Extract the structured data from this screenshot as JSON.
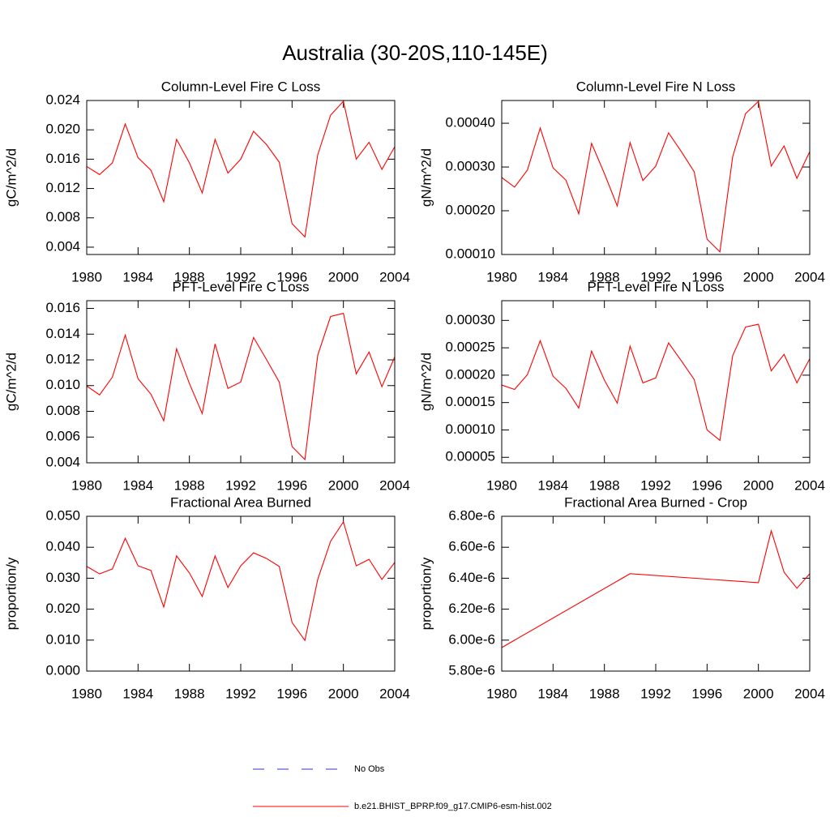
{
  "title": "Australia (30-20S,110-145E)",
  "legend": [
    {
      "name": "No Obs",
      "color": "#3333cc",
      "dash": true
    },
    {
      "name": "b.e21.BHIST_BPRP.f09_g17.CMIP6-esm-hist.002",
      "color": "#ff0000",
      "dash": false
    }
  ],
  "chart_data": [
    {
      "type": "line",
      "title": "Column-Level Fire C Loss",
      "ylabel": "gC/m^2/d",
      "color": "#ff0000",
      "x": [
        1980,
        1981,
        1982,
        1983,
        1984,
        1985,
        1986,
        1987,
        1988,
        1989,
        1990,
        1991,
        1992,
        1993,
        1994,
        1995,
        1996,
        1997,
        1998,
        1999,
        2000,
        2001,
        2002,
        2003,
        2004
      ],
      "values": [
        0.015,
        0.0139,
        0.0155,
        0.0208,
        0.0162,
        0.0145,
        0.0102,
        0.0187,
        0.0155,
        0.0114,
        0.0187,
        0.0141,
        0.016,
        0.0198,
        0.018,
        0.0156,
        0.0072,
        0.0054,
        0.0166,
        0.022,
        0.0239,
        0.016,
        0.0183,
        0.0146,
        0.0177
      ],
      "xlim": [
        1980,
        2004
      ],
      "xticks": [
        1980,
        1984,
        1988,
        1992,
        1996,
        2000,
        2004
      ],
      "ylim": [
        0.003,
        0.024
      ],
      "yticks": [
        0.004,
        0.008,
        0.012,
        0.016,
        {
          "value": 0.02,
          "label": "0.020"
        },
        0.024
      ]
    },
    {
      "type": "line",
      "title": "Column-Level Fire N Loss",
      "ylabel": "gN/m^2/d",
      "color": "#ff0000",
      "x": [
        1980,
        1981,
        1982,
        1983,
        1984,
        1985,
        1986,
        1987,
        1988,
        1989,
        1990,
        1991,
        1992,
        1993,
        1994,
        1995,
        1996,
        1997,
        1998,
        1999,
        2000,
        2001,
        2002,
        2003,
        2004
      ],
      "values": [
        0.000276,
        0.000254,
        0.000293,
        0.000389,
        0.000298,
        0.00027,
        0.000193,
        0.000354,
        0.000285,
        0.000211,
        0.000356,
        0.000269,
        0.000302,
        0.000378,
        0.000335,
        0.000289,
        0.000135,
        0.000106,
        0.000324,
        0.000422,
        0.00045,
        0.000302,
        0.000348,
        0.000274,
        0.000335
      ],
      "xlim": [
        1980,
        2004
      ],
      "xticks": [
        1980,
        1984,
        1988,
        1992,
        1996,
        2000,
        2004
      ],
      "ylim": [
        0.0001,
        0.000452
      ],
      "yticks": [
        {
          "value": 0.0001,
          "label": "0.00010"
        },
        {
          "value": 0.0002,
          "label": "0.00020"
        },
        {
          "value": 0.0003,
          "label": "0.00030"
        },
        {
          "value": 0.0004,
          "label": "0.00040"
        }
      ]
    },
    {
      "type": "line",
      "title": "PFT-Level Fire C Loss",
      "ylabel": "gC/m^2/d",
      "color": "#ff0000",
      "x": [
        1980,
        1981,
        1982,
        1983,
        1984,
        1985,
        1986,
        1987,
        1988,
        1989,
        1990,
        1991,
        1992,
        1993,
        1994,
        1995,
        1996,
        1997,
        1998,
        1999,
        2000,
        2001,
        2002,
        2003,
        2004
      ],
      "values": [
        0.00997,
        0.00928,
        0.01066,
        0.01393,
        0.01053,
        0.00934,
        0.00727,
        0.01286,
        0.01016,
        0.00783,
        0.01324,
        0.00978,
        0.01028,
        0.01374,
        0.01204,
        0.01028,
        0.00526,
        0.00425,
        0.01236,
        0.01537,
        0.01562,
        0.01091,
        0.01261,
        0.00991,
        0.01223
      ],
      "xlim": [
        1980,
        2004
      ],
      "xticks": [
        1980,
        1984,
        1988,
        1992,
        1996,
        2000,
        2004
      ],
      "ylim": [
        0.004,
        0.0166
      ],
      "yticks": [
        0.004,
        0.006,
        0.008,
        {
          "value": 0.01,
          "label": "0.010"
        },
        0.012,
        0.014,
        0.016
      ]
    },
    {
      "type": "line",
      "title": "PFT-Level Fire N Loss",
      "ylabel": "gN/m^2/d",
      "color": "#ff0000",
      "x": [
        1980,
        1981,
        1982,
        1983,
        1984,
        1985,
        1986,
        1987,
        1988,
        1989,
        1990,
        1991,
        1992,
        1993,
        1994,
        1995,
        1996,
        1997,
        1998,
        1999,
        2000,
        2001,
        2002,
        2003,
        2004
      ],
      "values": [
        0.000182,
        0.000174,
        0.000201,
        0.000263,
        0.000198,
        0.000176,
        0.00014,
        0.000244,
        0.000191,
        0.000149,
        0.000253,
        0.000186,
        0.000195,
        0.000259,
        0.000226,
        0.000192,
        0.0001,
        8.1e-05,
        0.000236,
        0.000288,
        0.000293,
        0.000208,
        0.000238,
        0.000186,
        0.00023
      ],
      "xlim": [
        1980,
        2004
      ],
      "xticks": [
        1980,
        1984,
        1988,
        1992,
        1996,
        2000,
        2004
      ],
      "ylim": [
        4e-05,
        0.000336
      ],
      "yticks": [
        5e-05,
        {
          "value": 0.0001,
          "label": "0.00010"
        },
        0.00015,
        {
          "value": 0.0002,
          "label": "0.00020"
        },
        0.00025,
        {
          "value": 0.0003,
          "label": "0.00030"
        }
      ]
    },
    {
      "type": "line",
      "title": "Fractional Area Burned",
      "ylabel": "proportion/y",
      "color": "#ff0000",
      "x": [
        1980,
        1981,
        1982,
        1983,
        1984,
        1985,
        1986,
        1987,
        1988,
        1989,
        1990,
        1991,
        1992,
        1993,
        1994,
        1995,
        1996,
        1997,
        1998,
        1999,
        2000,
        2001,
        2002,
        2003,
        2004
      ],
      "values": [
        0.0338,
        0.0314,
        0.033,
        0.0429,
        0.034,
        0.0325,
        0.0207,
        0.0372,
        0.0317,
        0.0241,
        0.0372,
        0.027,
        0.034,
        0.0382,
        0.0364,
        0.0338,
        0.0157,
        0.0099,
        0.0296,
        0.0419,
        0.0482,
        0.034,
        0.0361,
        0.0296,
        0.0351
      ],
      "xlim": [
        1980,
        2004
      ],
      "xticks": [
        1980,
        1984,
        1988,
        1992,
        1996,
        2000,
        2004
      ],
      "ylim": [
        0,
        0.05
      ],
      "yticks": [
        {
          "value": 0,
          "label": "0.000"
        },
        {
          "value": 0.01,
          "label": "0.010"
        },
        {
          "value": 0.02,
          "label": "0.020"
        },
        {
          "value": 0.03,
          "label": "0.030"
        },
        {
          "value": 0.04,
          "label": "0.040"
        },
        {
          "value": 0.05,
          "label": "0.050"
        }
      ]
    },
    {
      "type": "line",
      "title": "Fractional Area Burned - Crop",
      "ylabel": "proportion/y",
      "color": "#ff0000",
      "x": [
        1980,
        1990,
        2000,
        2001,
        2002,
        2003,
        2004
      ],
      "values": [
        5.952e-06,
        6.429e-06,
        6.371e-06,
        6.706e-06,
        6.439e-06,
        6.335e-06,
        6.429e-06
      ],
      "xlim": [
        1980,
        2004
      ],
      "xticks": [
        1980,
        1984,
        1988,
        1992,
        1996,
        2000,
        2004
      ],
      "ylim": [
        5.8e-06,
        6.8e-06
      ],
      "yticks": [
        {
          "value": 5.8e-06,
          "label": "5.80e-6"
        },
        {
          "value": 6e-06,
          "label": "6.00e-6"
        },
        {
          "value": 6.2e-06,
          "label": "6.20e-6"
        },
        {
          "value": 6.4e-06,
          "label": "6.40e-6"
        },
        {
          "value": 6.6e-06,
          "label": "6.60e-6"
        },
        {
          "value": 6.8e-06,
          "label": "6.80e-6"
        }
      ]
    }
  ]
}
